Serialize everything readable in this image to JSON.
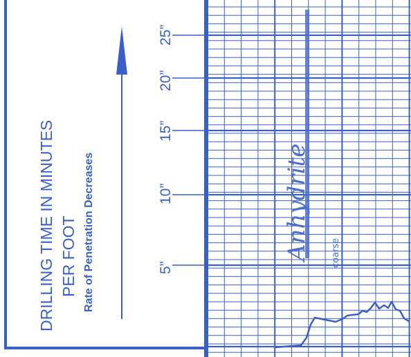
{
  "header": {
    "title_line1": "DRILLING TIME IN MINUTES",
    "title_line2": "PER FOOT",
    "subtitle": "Rate of Penetration Decreases"
  },
  "scale": {
    "labels": [
      "5”",
      "10”",
      "15”",
      "20”",
      "25”"
    ]
  },
  "annotations": {
    "formation": "Anhydrite",
    "small_note": "coarse"
  },
  "colors": {
    "ink": "#3a5fc8",
    "pen": "#4a6fd0",
    "paper": "#ffffff"
  }
}
